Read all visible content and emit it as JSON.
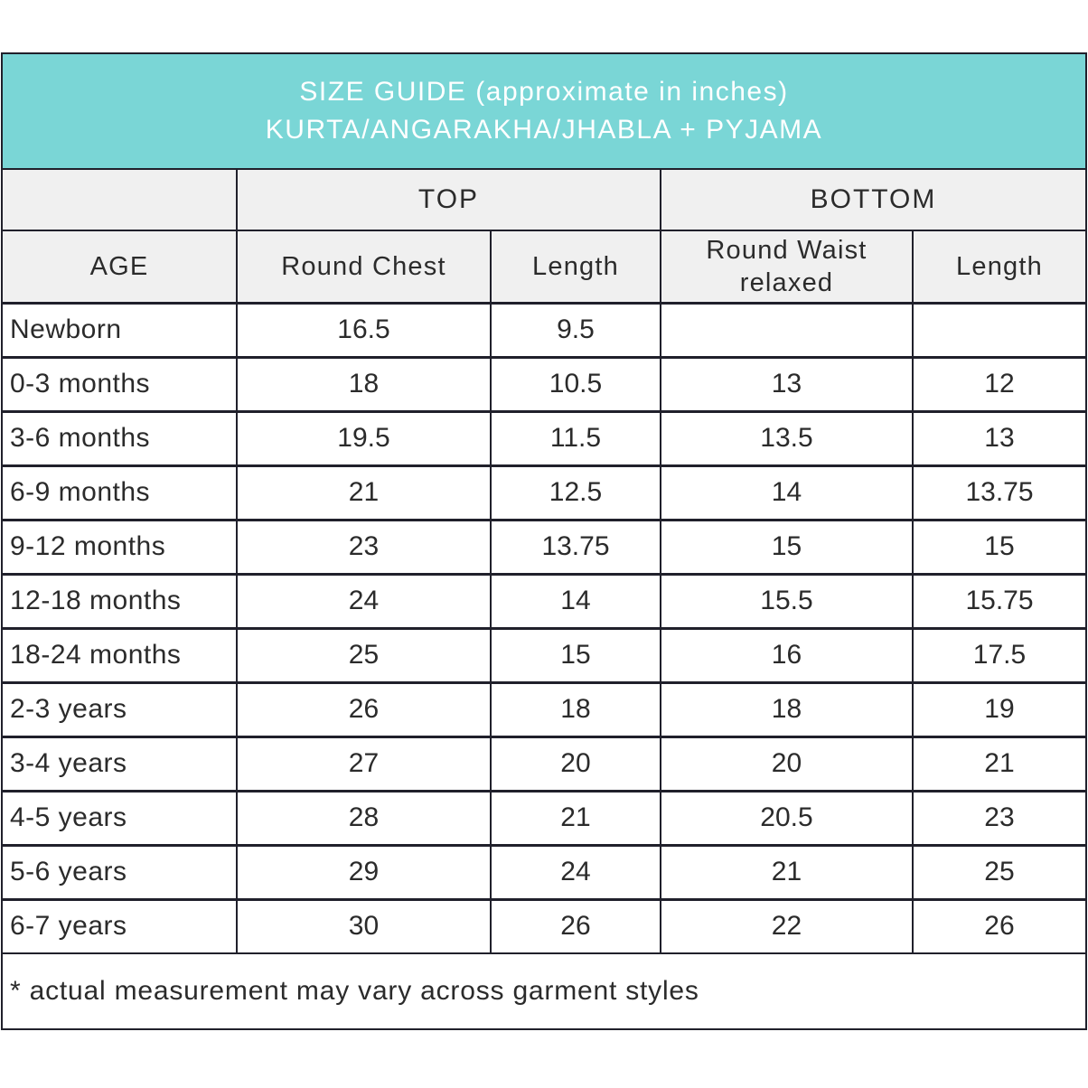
{
  "title": {
    "line1": "SIZE GUIDE (approximate in inches)",
    "line2": "KURTA/ANGARAKHA/JHABLA + PYJAMA"
  },
  "colors": {
    "title_background": "#7ad6d6",
    "title_text": "#ffffff",
    "header_background": "#f0f0f0",
    "border": "#20202b",
    "body_text": "#2b2b2b"
  },
  "group_headers": {
    "top": "TOP",
    "bottom": "BOTTOM"
  },
  "column_headers": {
    "age": "AGE",
    "round_chest": "Round Chest",
    "top_length": "Length",
    "round_waist": "Round Waist relaxed",
    "bottom_length": "Length"
  },
  "rows": [
    {
      "age": "Newborn",
      "round_chest": "16.5",
      "top_length": "9.5",
      "round_waist": "",
      "bottom_length": ""
    },
    {
      "age": "0-3 months",
      "round_chest": "18",
      "top_length": "10.5",
      "round_waist": "13",
      "bottom_length": "12"
    },
    {
      "age": "3-6 months",
      "round_chest": "19.5",
      "top_length": "11.5",
      "round_waist": "13.5",
      "bottom_length": "13"
    },
    {
      "age": "6-9 months",
      "round_chest": "21",
      "top_length": "12.5",
      "round_waist": "14",
      "bottom_length": "13.75"
    },
    {
      "age": "9-12 months",
      "round_chest": "23",
      "top_length": "13.75",
      "round_waist": "15",
      "bottom_length": "15"
    },
    {
      "age": "12-18 months",
      "round_chest": "24",
      "top_length": "14",
      "round_waist": "15.5",
      "bottom_length": "15.75"
    },
    {
      "age": "18-24 months",
      "round_chest": "25",
      "top_length": "15",
      "round_waist": "16",
      "bottom_length": "17.5"
    },
    {
      "age": "2-3 years",
      "round_chest": "26",
      "top_length": "18",
      "round_waist": "18",
      "bottom_length": "19"
    },
    {
      "age": "3-4 years",
      "round_chest": "27",
      "top_length": "20",
      "round_waist": "20",
      "bottom_length": "21"
    },
    {
      "age": "4-5 years",
      "round_chest": "28",
      "top_length": "21",
      "round_waist": "20.5",
      "bottom_length": "23"
    },
    {
      "age": "5-6 years",
      "round_chest": "29",
      "top_length": "24",
      "round_waist": "21",
      "bottom_length": "25"
    },
    {
      "age": "6-7 years",
      "round_chest": "30",
      "top_length": "26",
      "round_waist": "22",
      "bottom_length": "26"
    }
  ],
  "footnote": "* actual measurement may vary across garment styles"
}
